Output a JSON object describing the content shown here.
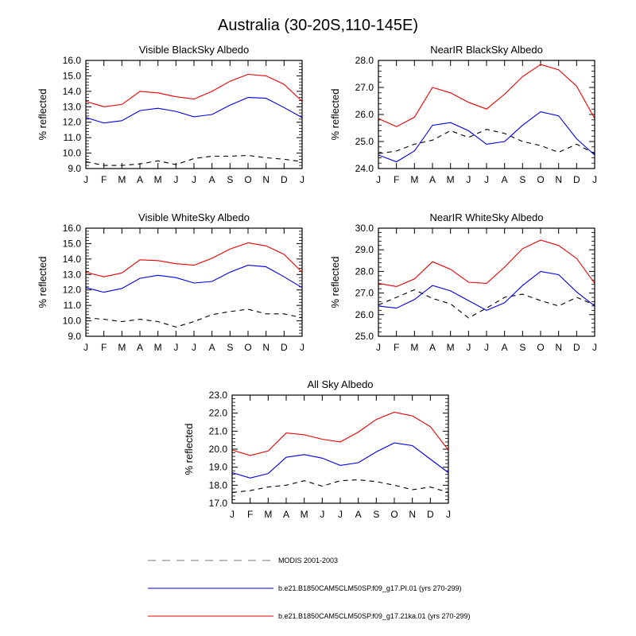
{
  "figure": {
    "title": "Australia (30-20S,110-145E)"
  },
  "legend": {
    "entries": [
      {
        "label": "MODIS 2001-2003",
        "color": "#777777",
        "dash": true
      },
      {
        "label": "b.e21.B1850CAM5CLM50SP.f09_g17.PI.01 (yrs 270-299)",
        "color": "#0000ee",
        "dash": false
      },
      {
        "label": "b.e21.B1850CAM5CLM50SP.f09_g17.21ka.01 (yrs 270-299)",
        "color": "#ee0000",
        "dash": false
      }
    ]
  },
  "chart_data": [
    {
      "type": "line",
      "title": "Visible BlackSky Albedo",
      "ylabel": "% reflected",
      "categories": [
        "J",
        "F",
        "M",
        "A",
        "M",
        "J",
        "J",
        "A",
        "S",
        "O",
        "N",
        "D",
        "J"
      ],
      "ylim": [
        9.0,
        16.0
      ],
      "yticks": [
        "9.0",
        "10.0",
        "11.0",
        "12.0",
        "13.0",
        "14.0",
        "15.0",
        "16.0"
      ],
      "series": [
        {
          "color": "#000000",
          "dash": true,
          "values": [
            9.45,
            9.2,
            9.2,
            9.3,
            9.5,
            9.25,
            9.65,
            9.8,
            9.8,
            9.85,
            9.7,
            9.6,
            9.45
          ]
        },
        {
          "color": "#0000ee",
          "dash": false,
          "values": [
            12.3,
            11.95,
            12.1,
            12.75,
            12.9,
            12.7,
            12.35,
            12.5,
            13.1,
            13.6,
            13.55,
            12.95,
            12.3
          ]
        },
        {
          "color": "#ee0000",
          "dash": false,
          "values": [
            13.35,
            13.0,
            13.15,
            14.0,
            13.9,
            13.65,
            13.5,
            14.0,
            14.65,
            15.1,
            15.0,
            14.45,
            13.35
          ]
        }
      ]
    },
    {
      "type": "line",
      "title": "NearIR BlackSky Albedo",
      "ylabel": "% reflected",
      "categories": [
        "J",
        "F",
        "M",
        "A",
        "M",
        "J",
        "J",
        "A",
        "S",
        "O",
        "N",
        "D",
        "J"
      ],
      "ylim": [
        24.0,
        28.0
      ],
      "yticks": [
        "24.0",
        "25.0",
        "26.0",
        "27.0",
        "28.0"
      ],
      "series": [
        {
          "color": "#000000",
          "dash": true,
          "values": [
            24.55,
            24.65,
            24.9,
            25.05,
            25.4,
            25.15,
            25.45,
            25.3,
            25.0,
            24.85,
            24.6,
            24.9,
            24.55
          ]
        },
        {
          "color": "#0000ee",
          "dash": false,
          "values": [
            24.5,
            24.25,
            24.65,
            25.6,
            25.7,
            25.4,
            24.9,
            25.0,
            25.6,
            26.1,
            25.95,
            25.1,
            24.5
          ]
        },
        {
          "color": "#ee0000",
          "dash": false,
          "values": [
            25.85,
            25.55,
            25.9,
            27.0,
            26.8,
            26.45,
            26.2,
            26.75,
            27.4,
            27.85,
            27.65,
            27.05,
            25.85
          ]
        }
      ]
    },
    {
      "type": "line",
      "title": "Visible WhiteSky Albedo",
      "ylabel": "% reflected",
      "categories": [
        "J",
        "F",
        "M",
        "A",
        "M",
        "J",
        "J",
        "A",
        "S",
        "O",
        "N",
        "D",
        "J"
      ],
      "ylim": [
        9.0,
        16.0
      ],
      "yticks": [
        "9.0",
        "10.0",
        "11.0",
        "12.0",
        "13.0",
        "14.0",
        "15.0",
        "16.0"
      ],
      "series": [
        {
          "color": "#000000",
          "dash": true,
          "values": [
            10.2,
            10.1,
            9.95,
            10.1,
            9.95,
            9.6,
            9.95,
            10.4,
            10.6,
            10.75,
            10.45,
            10.45,
            10.2
          ]
        },
        {
          "color": "#0000ee",
          "dash": false,
          "values": [
            12.15,
            11.85,
            12.1,
            12.75,
            12.95,
            12.8,
            12.45,
            12.55,
            13.15,
            13.6,
            13.5,
            12.85,
            12.15
          ]
        },
        {
          "color": "#ee0000",
          "dash": false,
          "values": [
            13.15,
            12.85,
            13.1,
            13.95,
            13.9,
            13.7,
            13.6,
            14.05,
            14.65,
            15.05,
            14.85,
            14.3,
            13.15
          ]
        }
      ]
    },
    {
      "type": "line",
      "title": "NearIR WhiteSky Albedo",
      "ylabel": "% reflected",
      "categories": [
        "J",
        "F",
        "M",
        "A",
        "M",
        "J",
        "J",
        "A",
        "S",
        "O",
        "N",
        "D",
        "J"
      ],
      "ylim": [
        25.0,
        30.0
      ],
      "yticks": [
        "25.0",
        "26.0",
        "27.0",
        "28.0",
        "29.0",
        "30.0"
      ],
      "series": [
        {
          "color": "#000000",
          "dash": true,
          "values": [
            26.45,
            26.8,
            27.15,
            26.75,
            26.5,
            25.85,
            26.3,
            26.8,
            26.95,
            26.65,
            26.4,
            26.8,
            26.45
          ]
        },
        {
          "color": "#0000ee",
          "dash": false,
          "values": [
            26.4,
            26.3,
            26.7,
            27.35,
            27.1,
            26.65,
            26.2,
            26.55,
            27.35,
            28.0,
            27.85,
            27.05,
            26.4
          ]
        },
        {
          "color": "#ee0000",
          "dash": false,
          "values": [
            27.45,
            27.3,
            27.65,
            28.45,
            28.1,
            27.5,
            27.45,
            28.2,
            29.05,
            29.45,
            29.2,
            28.6,
            27.45
          ]
        }
      ]
    },
    {
      "type": "line",
      "title": "All Sky Albedo",
      "ylabel": "% reflected",
      "categories": [
        "J",
        "F",
        "M",
        "A",
        "M",
        "J",
        "J",
        "A",
        "S",
        "O",
        "N",
        "D",
        "J"
      ],
      "ylim": [
        17.0,
        23.0
      ],
      "yticks": [
        "17.0",
        "18.0",
        "19.0",
        "20.0",
        "21.0",
        "22.0",
        "23.0"
      ],
      "series": [
        {
          "color": "#000000",
          "dash": true,
          "values": [
            17.6,
            17.7,
            17.9,
            18.0,
            18.25,
            17.95,
            18.25,
            18.3,
            18.2,
            18.0,
            17.75,
            17.9,
            17.6
          ]
        },
        {
          "color": "#0000ee",
          "dash": false,
          "values": [
            18.7,
            18.4,
            18.65,
            19.55,
            19.7,
            19.5,
            19.1,
            19.25,
            19.85,
            20.35,
            20.2,
            19.45,
            18.7
          ]
        },
        {
          "color": "#ee0000",
          "dash": false,
          "values": [
            19.95,
            19.65,
            19.9,
            20.9,
            20.8,
            20.55,
            20.4,
            20.95,
            21.65,
            22.05,
            21.85,
            21.25,
            19.95
          ]
        }
      ]
    }
  ]
}
